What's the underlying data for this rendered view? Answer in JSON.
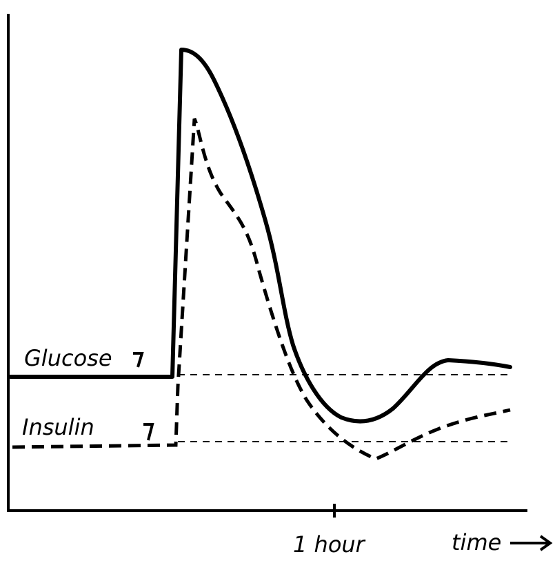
{
  "labels": {
    "glucose": "Glucose",
    "insulin": "Insulin",
    "x_mark": "1 hour",
    "x_axis": "time"
  }
}
